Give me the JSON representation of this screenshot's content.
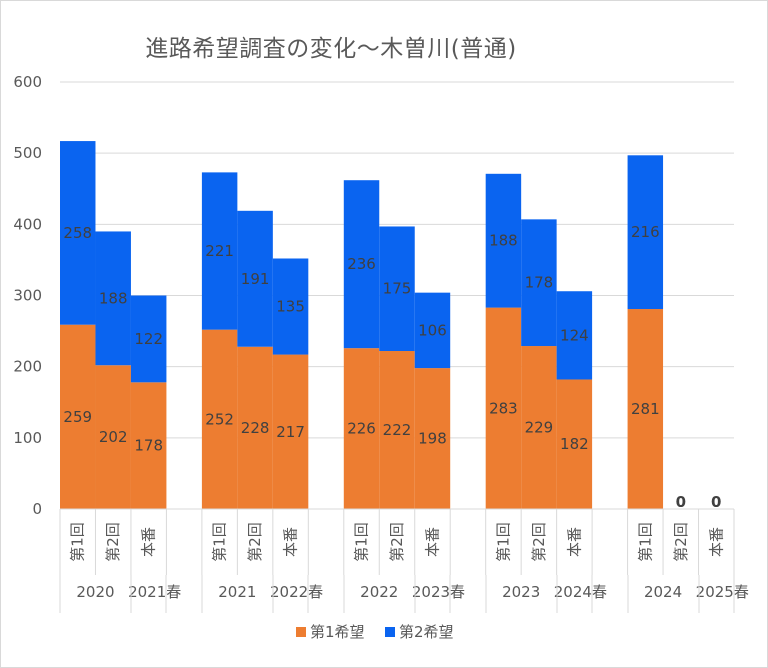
{
  "chart_data": {
    "type": "bar",
    "stacked": true,
    "title": "進路希望調査の変化～木曽川(普通)",
    "ylim": [
      0,
      600
    ],
    "yticks": [
      0,
      100,
      200,
      300,
      400,
      500,
      600
    ],
    "grid": true,
    "legend_position": "bottom",
    "groups": [
      {
        "label": "2020",
        "categories": [
          "第1回",
          "第2回"
        ]
      },
      {
        "label": "2021春",
        "categories": [
          "本番"
        ]
      },
      {
        "label": "2021",
        "categories": [
          "第1回",
          "第2回"
        ]
      },
      {
        "label": "2022春",
        "categories": [
          "本番"
        ]
      },
      {
        "label": "2022",
        "categories": [
          "第1回",
          "第2回"
        ]
      },
      {
        "label": "2023春",
        "categories": [
          "本番"
        ]
      },
      {
        "label": "2023",
        "categories": [
          "第1回",
          "第2回"
        ]
      },
      {
        "label": "2024春",
        "categories": [
          "本番"
        ]
      },
      {
        "label": "2024",
        "categories": [
          "第1回",
          "第2回"
        ]
      },
      {
        "label": "2025春",
        "categories": [
          "本番"
        ]
      }
    ],
    "categories": [
      "第1回",
      "第2回",
      "本番",
      "",
      "第1回",
      "第2回",
      "本番",
      "",
      "第1回",
      "第2回",
      "本番",
      "",
      "第1回",
      "第2回",
      "本番",
      "",
      "第1回",
      "第2回",
      "本番"
    ],
    "series": [
      {
        "name": "第1希望",
        "color": "#ED7D31",
        "values": [
          259,
          202,
          178,
          null,
          252,
          228,
          217,
          null,
          226,
          222,
          198,
          null,
          283,
          229,
          182,
          null,
          281,
          0,
          0
        ]
      },
      {
        "name": "第2希望",
        "color": "#0A64F0",
        "values": [
          258,
          188,
          122,
          null,
          221,
          191,
          135,
          null,
          236,
          175,
          106,
          null,
          188,
          178,
          124,
          null,
          216,
          null,
          null
        ]
      }
    ],
    "data_labels": [
      [
        "259",
        "202",
        "178",
        "",
        "252",
        "228",
        "217",
        "",
        "226",
        "222",
        "198",
        "",
        "283",
        "229",
        "182",
        "",
        "281",
        "0",
        "0"
      ],
      [
        "258",
        "188",
        "122",
        "",
        "221",
        "191",
        "135",
        "",
        "236",
        "175",
        "106",
        "",
        "188",
        "178",
        "124",
        "",
        "216",
        "",
        ""
      ]
    ]
  }
}
